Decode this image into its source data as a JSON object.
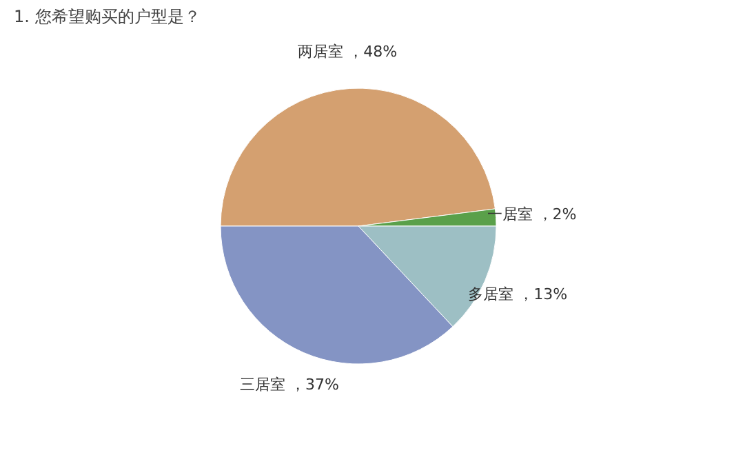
{
  "chart_data": {
    "type": "pie",
    "title": "1. 您希望购买的户型是？",
    "categories": [
      "两居室",
      "一居室",
      "多居室",
      "三居室"
    ],
    "values": [
      48,
      2,
      13,
      37
    ],
    "value_labels": [
      "48%",
      "2%",
      "13%",
      "37%"
    ],
    "colors": [
      "#d4a070",
      "#5aa04a",
      "#9dbfc4",
      "#8494c4"
    ]
  }
}
